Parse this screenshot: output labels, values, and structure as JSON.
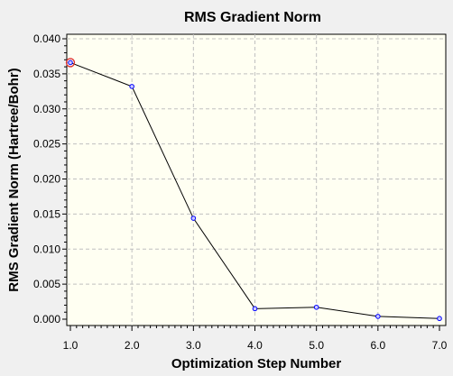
{
  "chart_data": {
    "type": "line",
    "title": "RMS Gradient Norm",
    "xlabel": "Optimization Step Number",
    "ylabel": "RMS Gradient Norm (Hartree/Bohr)",
    "xlim": [
      1.0,
      7.0
    ],
    "ylim": [
      0.0,
      0.04
    ],
    "x_ticks": [
      "1.0",
      "2.0",
      "3.0",
      "4.0",
      "5.0",
      "6.0",
      "7.0"
    ],
    "y_ticks": [
      "0.000",
      "0.005",
      "0.010",
      "0.015",
      "0.020",
      "0.025",
      "0.030",
      "0.035",
      "0.040"
    ],
    "grid": true,
    "series": [
      {
        "x": [
          1,
          2,
          3,
          4,
          5,
          6,
          7
        ],
        "y": [
          0.0366,
          0.0332,
          0.0144,
          0.0015,
          0.0017,
          0.0004,
          0.0001
        ]
      }
    ],
    "highlighted_point_index": 0,
    "colors": {
      "plot_background": "#fffff2",
      "line": "#000000",
      "marker": "#0000ff",
      "highlight": "#e03030",
      "grid": "#c0c0c0"
    }
  }
}
